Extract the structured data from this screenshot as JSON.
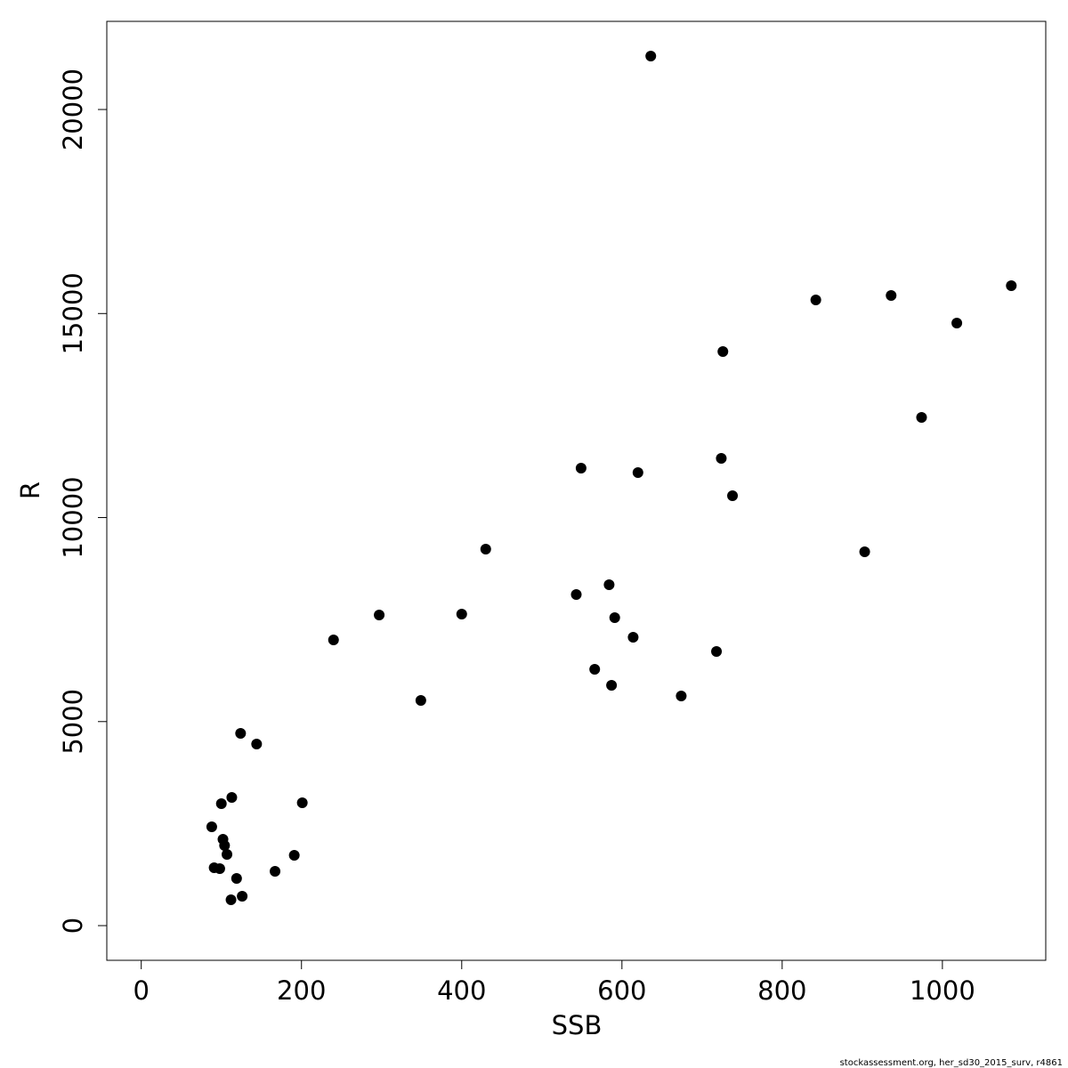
{
  "chart_data": {
    "type": "scatter",
    "x_label": "SSB",
    "y_label": "R",
    "footer": "stockassessment.org, her_sd30_2015_surv, r4861",
    "color": "#000000",
    "xlim": [
      -43,
      1129
    ],
    "ylim": [
      -850,
      22160
    ],
    "xticks": [
      0,
      200,
      400,
      600,
      800,
      1000
    ],
    "yticks": [
      0,
      5000,
      10000,
      15000,
      20000
    ],
    "x": [
      636,
      1086,
      936,
      842,
      1018,
      726,
      974,
      549,
      620,
      724,
      738,
      430,
      903,
      584,
      543,
      297,
      400,
      591,
      614,
      240,
      718,
      566,
      587,
      674,
      349,
      124,
      144,
      113,
      201,
      100,
      88,
      102,
      104,
      107,
      191,
      91,
      98,
      167,
      119,
      126,
      112
    ],
    "y": [
      21309,
      15682,
      15442,
      15333,
      14766,
      14068,
      12454,
      11210,
      11101,
      11450,
      10534,
      9226,
      9160,
      8353,
      8113,
      7612,
      7634,
      7546,
      7067,
      7001,
      6718,
      6281,
      5889,
      5627,
      5518,
      4711,
      4449,
      3141,
      3010,
      2988,
      2421,
      2116,
      1963,
      1745,
      1723,
      1418,
      1396,
      1330,
      1156,
      720,
      632
    ]
  }
}
